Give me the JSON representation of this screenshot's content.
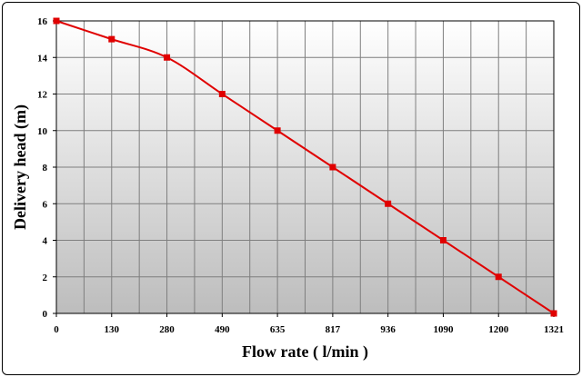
{
  "chart_data": {
    "type": "line",
    "title": "",
    "xlabel": "Flow rate ( l/min )",
    "ylabel": "Delivery head  (m)",
    "x_tick_labels": [
      "0",
      "130",
      "280",
      "490",
      "635",
      "817",
      "936",
      "1090",
      "1200",
      "1321"
    ],
    "y_ticks": [
      0,
      2,
      4,
      6,
      8,
      10,
      12,
      14,
      16
    ],
    "ylim": [
      0,
      16
    ],
    "grid": true,
    "series": [
      {
        "values": [
          16,
          15,
          14,
          12,
          10,
          8,
          6,
          4,
          2,
          0
        ],
        "color": "#e00000",
        "marker": "square"
      }
    ]
  },
  "colors": {
    "plot_bg_top": "#ffffff",
    "plot_bg_bottom": "#bdbdbd",
    "grid": "#7f7f7f",
    "line": "#e00000"
  }
}
